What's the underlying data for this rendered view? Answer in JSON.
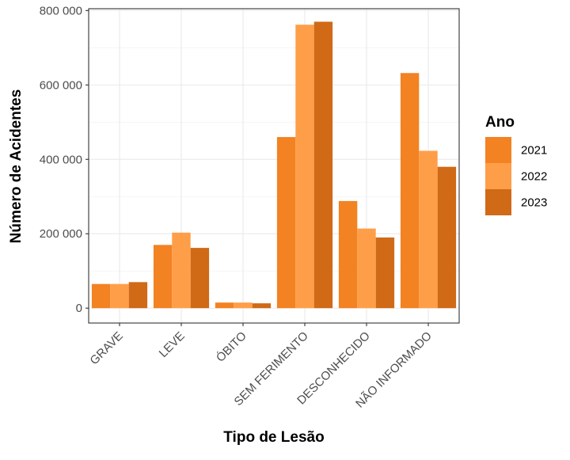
{
  "chart_data": {
    "type": "bar",
    "title": "",
    "xlabel": "Tipo de Lesão",
    "ylabel": "Número de Acidentes",
    "categories": [
      "GRAVE",
      "LEVE",
      "ÓBITO",
      "SEM FERIMENTO",
      "DESCONHECIDO",
      "NÃO INFORMADO"
    ],
    "series": [
      {
        "name": "2021",
        "color": "#F28222",
        "values": [
          65000,
          170000,
          15000,
          460000,
          288000,
          632000
        ]
      },
      {
        "name": "2022",
        "color": "#FF9E48",
        "values": [
          65000,
          203000,
          15000,
          762000,
          214000,
          423000
        ]
      },
      {
        "name": "2023",
        "color": "#D06A17",
        "values": [
          70000,
          162000,
          13000,
          770000,
          190000,
          380000
        ]
      }
    ],
    "ylim": [
      -40000,
      805000
    ],
    "yticks": [
      0,
      200000,
      400000,
      600000,
      800000
    ],
    "ytick_labels": [
      "0",
      "200 000",
      "400 000",
      "600 000",
      "800 000"
    ],
    "legend_title": "Ano",
    "legend_position": "right",
    "grid": true
  }
}
